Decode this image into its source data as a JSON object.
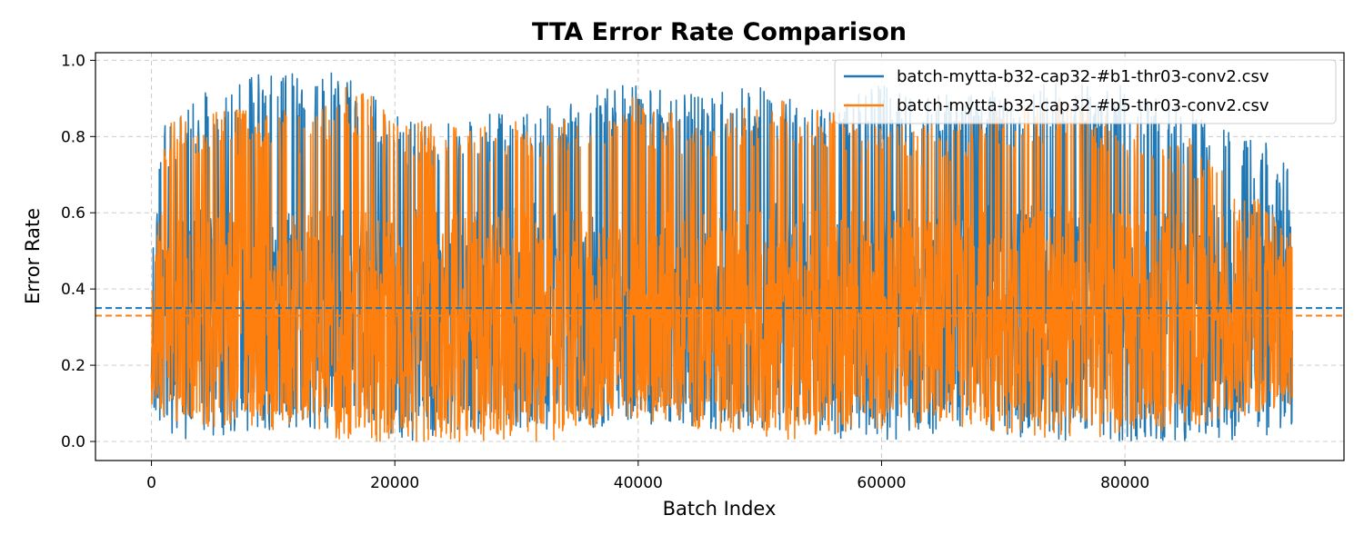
{
  "chart_data": {
    "type": "line",
    "title": "TTA Error Rate Comparison",
    "xlabel": "Batch Index",
    "ylabel": "Error Rate",
    "xlim": [
      -4600,
      98000
    ],
    "ylim": [
      -0.05,
      1.02
    ],
    "x_ticks": [
      0,
      20000,
      40000,
      60000,
      80000
    ],
    "x_tick_labels": [
      "0",
      "20000",
      "40000",
      "60000",
      "80000"
    ],
    "y_ticks": [
      0.0,
      0.2,
      0.4,
      0.6,
      0.8,
      1.0
    ],
    "y_tick_labels": [
      "0.0",
      "0.2",
      "0.4",
      "0.6",
      "0.8",
      "1.0"
    ],
    "grid": true,
    "legend_position": "top-right",
    "n_points": 93750,
    "series": [
      {
        "name": "batch-mytta-b32-cap32-#b1-thr03-conv2.csv",
        "color": "#1f77b4",
        "mean": 0.35,
        "x_range": [
          0,
          93750
        ],
        "envelope": [
          {
            "x": 0,
            "low": 0.1,
            "high": 0.53
          },
          {
            "x": 1000,
            "low": 0.03,
            "high": 0.84
          },
          {
            "x": 2000,
            "low": 0.0,
            "high": 0.84
          },
          {
            "x": 4000,
            "low": 0.0,
            "high": 0.91
          },
          {
            "x": 8500,
            "low": 0.03,
            "high": 0.97
          },
          {
            "x": 14000,
            "low": 0.03,
            "high": 0.97
          },
          {
            "x": 15500,
            "low": 0.03,
            "high": 0.97
          },
          {
            "x": 21000,
            "low": 0.0,
            "high": 0.84
          },
          {
            "x": 30000,
            "low": 0.03,
            "high": 0.87
          },
          {
            "x": 39000,
            "low": 0.03,
            "high": 0.94
          },
          {
            "x": 44000,
            "low": 0.03,
            "high": 0.91
          },
          {
            "x": 50000,
            "low": 0.03,
            "high": 0.94
          },
          {
            "x": 55000,
            "low": 0.0,
            "high": 0.87
          },
          {
            "x": 60000,
            "low": 0.0,
            "high": 0.94
          },
          {
            "x": 66000,
            "low": 0.03,
            "high": 0.91
          },
          {
            "x": 74000,
            "low": 0.0,
            "high": 0.94
          },
          {
            "x": 80000,
            "low": 0.0,
            "high": 0.94
          },
          {
            "x": 90000,
            "low": 0.0,
            "high": 0.81
          },
          {
            "x": 93750,
            "low": 0.03,
            "high": 0.75
          }
        ]
      },
      {
        "name": "batch-mytta-b32-cap32-#b5-thr03-conv2.csv",
        "color": "#ff7f0e",
        "mean": 0.33,
        "x_range": [
          0,
          93750
        ],
        "envelope": [
          {
            "x": 0,
            "low": 0.1,
            "high": 0.47
          },
          {
            "x": 1000,
            "low": 0.06,
            "high": 0.84
          },
          {
            "x": 4000,
            "low": 0.03,
            "high": 0.87
          },
          {
            "x": 14000,
            "low": 0.03,
            "high": 0.87
          },
          {
            "x": 15500,
            "low": 0.0,
            "high": 0.94
          },
          {
            "x": 23000,
            "low": 0.0,
            "high": 0.84
          },
          {
            "x": 33000,
            "low": 0.0,
            "high": 0.84
          },
          {
            "x": 39000,
            "low": 0.06,
            "high": 0.91
          },
          {
            "x": 45000,
            "low": 0.03,
            "high": 0.84
          },
          {
            "x": 52000,
            "low": 0.0,
            "high": 0.91
          },
          {
            "x": 58000,
            "low": 0.03,
            "high": 0.84
          },
          {
            "x": 66000,
            "low": 0.03,
            "high": 0.84
          },
          {
            "x": 75000,
            "low": 0.0,
            "high": 0.91
          },
          {
            "x": 85000,
            "low": 0.03,
            "high": 0.81
          },
          {
            "x": 93750,
            "low": 0.1,
            "high": 0.56
          }
        ]
      }
    ],
    "reference_lines": [
      {
        "series": "batch-mytta-b32-cap32-#b1-thr03-conv2.csv",
        "y": 0.35,
        "style": "dashed",
        "color": "#1f77b4"
      },
      {
        "series": "batch-mytta-b32-cap32-#b5-thr03-conv2.csv",
        "y": 0.33,
        "style": "dashed",
        "color": "#ff7f0e"
      }
    ]
  }
}
